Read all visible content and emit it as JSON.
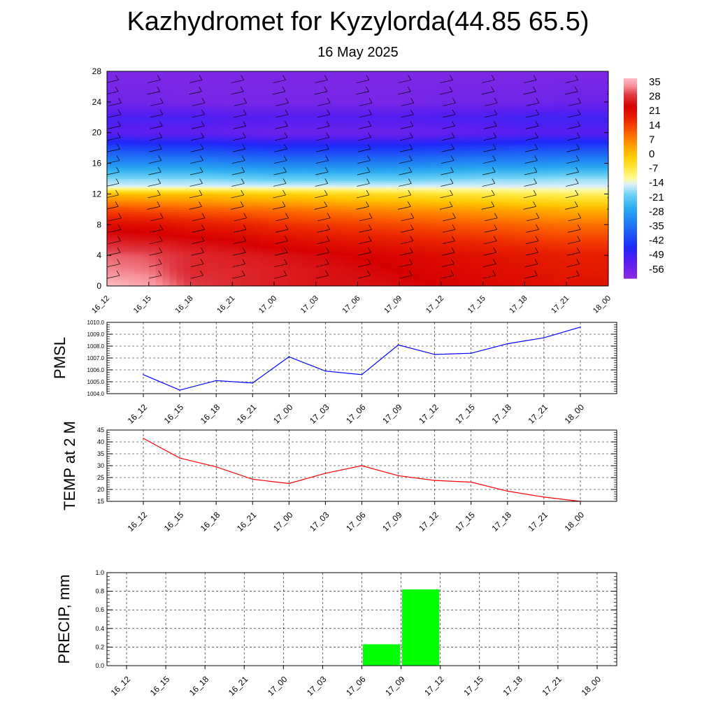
{
  "title": "Kazhydromet for Kyzylorda(44.85 65.5)",
  "subtitle": "16 May 2025",
  "chart_data": [
    {
      "id": "section",
      "type": "heatmap",
      "title": "",
      "xlabel": "",
      "ylabel": "",
      "x": [
        "16_12",
        "16_15",
        "16_18",
        "16_21",
        "17_00",
        "17_03",
        "17_06",
        "17_09",
        "17_12",
        "17_15",
        "17_18",
        "17_21",
        "18_00"
      ],
      "ylim": [
        0,
        28
      ],
      "yticks": [
        0,
        4,
        8,
        12,
        16,
        20,
        24,
        28
      ],
      "colorbar": {
        "labels": [
          "35",
          "28",
          "21",
          "14",
          "7",
          "0",
          "-7",
          "-14",
          "-21",
          "-28",
          "-35",
          "-42",
          "-49",
          "-56"
        ],
        "range": [
          -60,
          38
        ]
      },
      "layers": [
        {
          "level": 0,
          "values": [
            38,
            36,
            30,
            28,
            27,
            26,
            26,
            25,
            24,
            23,
            22,
            21,
            21
          ]
        },
        {
          "level": 2,
          "values": [
            34,
            33,
            28,
            28,
            27,
            26,
            25,
            24,
            23,
            22,
            21,
            20,
            20
          ]
        },
        {
          "level": 4,
          "values": [
            32,
            31,
            28,
            27,
            26,
            25,
            24,
            23,
            22,
            21,
            20,
            19,
            19
          ]
        },
        {
          "level": 6,
          "values": [
            27,
            26,
            25,
            24,
            22,
            21,
            20,
            19,
            18,
            17,
            16,
            15,
            15
          ]
        },
        {
          "level": 8,
          "values": [
            22,
            22,
            20,
            19,
            17,
            16,
            15,
            14,
            13,
            12,
            11,
            10,
            10
          ]
        },
        {
          "level": 10,
          "values": [
            14,
            13,
            12,
            11,
            10,
            9,
            8,
            7,
            6,
            5,
            4,
            3,
            3
          ]
        },
        {
          "level": 12,
          "values": [
            2,
            1,
            1,
            0,
            -1,
            -2,
            -3,
            -4,
            -5,
            -6,
            -7,
            -8,
            -8
          ]
        },
        {
          "level": 13,
          "values": [
            -14,
            -14,
            -14,
            -14,
            -14,
            -14,
            -14,
            -14,
            -14,
            -14,
            -14,
            -14,
            -14
          ]
        },
        {
          "level": 14,
          "values": [
            -18,
            -18,
            -18,
            -19,
            -20,
            -20,
            -20,
            -20,
            -19,
            -18,
            -18,
            -17,
            -17
          ]
        },
        {
          "level": 16,
          "values": [
            -30,
            -30,
            -30,
            -31,
            -32,
            -32,
            -32,
            -32,
            -31,
            -30,
            -30,
            -29,
            -29
          ]
        },
        {
          "level": 18,
          "values": [
            -40,
            -41,
            -41,
            -42,
            -43,
            -43,
            -43,
            -43,
            -42,
            -41,
            -40,
            -40,
            -40
          ]
        },
        {
          "level": 20,
          "values": [
            -52,
            -53,
            -53,
            -54,
            -55,
            -55,
            -55,
            -55,
            -54,
            -53,
            -52,
            -52,
            -52
          ]
        },
        {
          "level": 22,
          "values": [
            -50,
            -50,
            -50,
            -51,
            -51,
            -51,
            -51,
            -51,
            -50,
            -50,
            -49,
            -49,
            -49
          ]
        },
        {
          "level": 24,
          "values": [
            -56,
            -56,
            -57,
            -57,
            -57,
            -57,
            -57,
            -57,
            -56,
            -56,
            -56,
            -55,
            -55
          ]
        },
        {
          "level": 28,
          "values": [
            -58,
            -58,
            -58,
            -58,
            -58,
            -58,
            -58,
            -58,
            -58,
            -58,
            -58,
            -58,
            -58
          ]
        }
      ]
    },
    {
      "id": "pmsl",
      "type": "line",
      "title": "",
      "xlabel": "",
      "ylabel": "PMSL",
      "categories": [
        "16_12",
        "16_15",
        "16_18",
        "16_21",
        "17_00",
        "17_03",
        "17_06",
        "17_09",
        "17_12",
        "17_15",
        "17_18",
        "17_21",
        "18_00"
      ],
      "values": [
        1005.6,
        1004.3,
        1005.1,
        1004.9,
        1007.1,
        1005.9,
        1005.6,
        1008.1,
        1007.3,
        1007.4,
        1008.2,
        1008.7,
        1009.6
      ],
      "ylim": [
        1004.0,
        1010.0
      ],
      "yticks": [
        "1004.0",
        "1005.0",
        "1006.0",
        "1007.0",
        "1008.0",
        "1009.0",
        "1010.0"
      ],
      "color": "#0000ff",
      "grid": true
    },
    {
      "id": "temp",
      "type": "line",
      "title": "",
      "xlabel": "",
      "ylabel": "TEMP at 2 M",
      "categories": [
        "16_12",
        "16_15",
        "16_18",
        "16_21",
        "17_00",
        "17_03",
        "17_06",
        "17_09",
        "17_12",
        "17_15",
        "17_18",
        "17_21",
        "18_00"
      ],
      "values": [
        41.5,
        33.2,
        29.5,
        24.3,
        22.5,
        26.8,
        30,
        25.8,
        23.8,
        23.1,
        19.3,
        16.8,
        15
      ],
      "ylim": [
        15,
        45
      ],
      "yticks": [
        "15",
        "20",
        "25",
        "30",
        "35",
        "40",
        "45"
      ],
      "color": "#ff0000",
      "grid": true
    },
    {
      "id": "precip",
      "type": "bar",
      "title": "",
      "xlabel": "",
      "ylabel": "PRECIP, mm",
      "categories": [
        "16_12",
        "16_15",
        "16_18",
        "16_21",
        "17_00",
        "17_03",
        "17_06",
        "17_09",
        "17_12",
        "17_15",
        "17_18",
        "17_21",
        "18_00"
      ],
      "values": [
        0,
        0,
        0,
        0,
        0,
        0,
        0,
        0.23,
        0.82,
        0,
        0,
        0,
        0
      ],
      "ylim": [
        0.0,
        1.0
      ],
      "yticks": [
        "0.0",
        "0.2",
        "0.4",
        "0.6",
        "0.8",
        "1.0"
      ],
      "color": "#00ff00",
      "grid": true
    }
  ]
}
